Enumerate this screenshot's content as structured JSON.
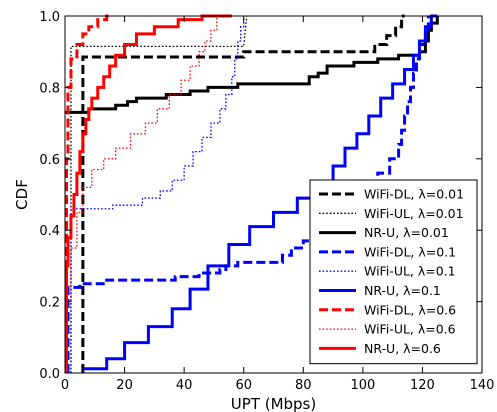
{
  "chart_data": {
    "type": "line",
    "chart_kind": "step CDF",
    "xlabel": "UPT (Mbps)",
    "ylabel": "CDF",
    "xlim": [
      0,
      140
    ],
    "ylim": [
      0.0,
      1.0
    ],
    "x_ticks": [
      "0",
      "20",
      "40",
      "60",
      "80",
      "100",
      "120",
      "140"
    ],
    "y_ticks": [
      "0.0",
      "0.2",
      "0.4",
      "0.6",
      "0.8",
      "1.0"
    ],
    "grid": false,
    "legend_placement": "lower-right",
    "colors": {
      "lambda_0.01": "#000000",
      "lambda_0.1": "#0000ff",
      "lambda_0.6": "#ff0000"
    },
    "series": [
      {
        "name": "WiFi-DL, λ=0.01",
        "color": "#000000",
        "style": "dashed",
        "points": [
          [
            6,
            0.0
          ],
          [
            6,
            0.885
          ],
          [
            60,
            0.885
          ],
          [
            60,
            0.9
          ],
          [
            104,
            0.9
          ],
          [
            104,
            0.92
          ],
          [
            108,
            0.92
          ],
          [
            108,
            0.945
          ],
          [
            111,
            0.945
          ],
          [
            111,
            0.97
          ],
          [
            113,
            0.97
          ],
          [
            113,
            1.0
          ],
          [
            114,
            1.0
          ]
        ]
      },
      {
        "name": "WiFi-UL, λ=0.01",
        "color": "#000000",
        "style": "dotted",
        "points": [
          [
            2,
            0.0
          ],
          [
            2,
            0.915
          ],
          [
            60,
            0.915
          ],
          [
            61,
            1.0
          ]
        ]
      },
      {
        "name": "NR-U, λ=0.01",
        "color": "#000000",
        "style": "solid",
        "points": [
          [
            0,
            0.73
          ],
          [
            8,
            0.73
          ],
          [
            8,
            0.74
          ],
          [
            17,
            0.74
          ],
          [
            17,
            0.75
          ],
          [
            21,
            0.75
          ],
          [
            21,
            0.76
          ],
          [
            24,
            0.76
          ],
          [
            24,
            0.77
          ],
          [
            34,
            0.77
          ],
          [
            34,
            0.78
          ],
          [
            42,
            0.78
          ],
          [
            42,
            0.79
          ],
          [
            48,
            0.79
          ],
          [
            48,
            0.8
          ],
          [
            58,
            0.8
          ],
          [
            58,
            0.81
          ],
          [
            82,
            0.81
          ],
          [
            82,
            0.83
          ],
          [
            85,
            0.83
          ],
          [
            85,
            0.84
          ],
          [
            88,
            0.84
          ],
          [
            88,
            0.86
          ],
          [
            97,
            0.86
          ],
          [
            97,
            0.87
          ],
          [
            105,
            0.87
          ],
          [
            105,
            0.88
          ],
          [
            112,
            0.88
          ],
          [
            112,
            0.89
          ],
          [
            119,
            0.89
          ],
          [
            119,
            0.9
          ],
          [
            121,
            0.9
          ],
          [
            121,
            0.93
          ],
          [
            122,
            0.93
          ],
          [
            122,
            0.96
          ],
          [
            123,
            0.96
          ],
          [
            123,
            0.98
          ],
          [
            125,
            0.98
          ],
          [
            125,
            1.0
          ]
        ]
      },
      {
        "name": "WiFi-DL, λ=0.1",
        "color": "#0000ff",
        "style": "dashed",
        "points": [
          [
            1,
            0.0
          ],
          [
            1,
            0.24
          ],
          [
            5,
            0.24
          ],
          [
            5,
            0.25
          ],
          [
            14,
            0.25
          ],
          [
            14,
            0.26
          ],
          [
            37,
            0.26
          ],
          [
            37,
            0.27
          ],
          [
            45,
            0.27
          ],
          [
            45,
            0.28
          ],
          [
            52,
            0.28
          ],
          [
            52,
            0.29
          ],
          [
            54,
            0.29
          ],
          [
            54,
            0.3
          ],
          [
            58,
            0.3
          ],
          [
            58,
            0.31
          ],
          [
            73,
            0.31
          ],
          [
            73,
            0.33
          ],
          [
            76,
            0.33
          ],
          [
            76,
            0.35
          ],
          [
            80,
            0.35
          ],
          [
            80,
            0.37
          ],
          [
            83,
            0.37
          ],
          [
            83,
            0.39
          ],
          [
            86,
            0.39
          ],
          [
            86,
            0.41
          ],
          [
            90,
            0.41
          ],
          [
            90,
            0.44
          ],
          [
            93,
            0.44
          ],
          [
            93,
            0.47
          ],
          [
            96,
            0.47
          ],
          [
            96,
            0.5
          ],
          [
            101,
            0.5
          ],
          [
            101,
            0.53
          ],
          [
            105,
            0.53
          ],
          [
            105,
            0.56
          ],
          [
            109,
            0.56
          ],
          [
            109,
            0.6
          ],
          [
            112,
            0.6
          ],
          [
            112,
            0.64
          ],
          [
            113,
            0.64
          ],
          [
            113,
            0.68
          ],
          [
            114,
            0.68
          ],
          [
            114,
            0.72
          ],
          [
            115,
            0.72
          ],
          [
            115,
            0.76
          ],
          [
            116,
            0.76
          ],
          [
            116,
            0.8
          ],
          [
            117,
            0.8
          ],
          [
            117,
            0.84
          ],
          [
            118,
            0.84
          ],
          [
            118,
            0.88
          ],
          [
            119,
            0.88
          ],
          [
            119,
            0.92
          ],
          [
            121,
            0.92
          ],
          [
            121,
            0.96
          ],
          [
            122,
            0.96
          ],
          [
            122,
            1.0
          ]
        ]
      },
      {
        "name": "WiFi-UL, λ=0.1",
        "color": "#0000ff",
        "style": "dotted",
        "points": [
          [
            2,
            0.0
          ],
          [
            2,
            0.46
          ],
          [
            16,
            0.46
          ],
          [
            16,
            0.47
          ],
          [
            26,
            0.47
          ],
          [
            26,
            0.49
          ],
          [
            32,
            0.49
          ],
          [
            32,
            0.51
          ],
          [
            36,
            0.51
          ],
          [
            36,
            0.54
          ],
          [
            40,
            0.54
          ],
          [
            40,
            0.58
          ],
          [
            43,
            0.58
          ],
          [
            43,
            0.62
          ],
          [
            46,
            0.62
          ],
          [
            46,
            0.66
          ],
          [
            49,
            0.66
          ],
          [
            49,
            0.7
          ],
          [
            52,
            0.7
          ],
          [
            52,
            0.74
          ],
          [
            54,
            0.74
          ],
          [
            54,
            0.78
          ],
          [
            56,
            0.78
          ],
          [
            56,
            0.83
          ],
          [
            57,
            0.83
          ],
          [
            57,
            0.88
          ],
          [
            58,
            0.88
          ],
          [
            58,
            0.93
          ],
          [
            59,
            0.93
          ],
          [
            59,
            0.97
          ],
          [
            60,
            0.97
          ],
          [
            60,
            1.0
          ]
        ]
      },
      {
        "name": "NR-U, λ=0.1",
        "color": "#0000ff",
        "style": "solid",
        "points": [
          [
            6,
            0.012
          ],
          [
            14,
            0.012
          ],
          [
            14,
            0.04
          ],
          [
            20,
            0.04
          ],
          [
            20,
            0.085
          ],
          [
            28,
            0.085
          ],
          [
            28,
            0.13
          ],
          [
            36,
            0.13
          ],
          [
            36,
            0.18
          ],
          [
            42,
            0.18
          ],
          [
            42,
            0.235
          ],
          [
            48,
            0.235
          ],
          [
            48,
            0.3
          ],
          [
            55,
            0.3
          ],
          [
            55,
            0.36
          ],
          [
            62,
            0.36
          ],
          [
            62,
            0.41
          ],
          [
            70,
            0.41
          ],
          [
            70,
            0.45
          ],
          [
            78,
            0.45
          ],
          [
            78,
            0.49
          ],
          [
            85,
            0.49
          ],
          [
            85,
            0.53
          ],
          [
            90,
            0.53
          ],
          [
            90,
            0.58
          ],
          [
            94,
            0.58
          ],
          [
            94,
            0.63
          ],
          [
            98,
            0.63
          ],
          [
            98,
            0.67
          ],
          [
            102,
            0.67
          ],
          [
            102,
            0.72
          ],
          [
            106,
            0.72
          ],
          [
            106,
            0.77
          ],
          [
            110,
            0.77
          ],
          [
            110,
            0.81
          ],
          [
            114,
            0.81
          ],
          [
            114,
            0.85
          ],
          [
            117,
            0.85
          ],
          [
            117,
            0.89
          ],
          [
            119,
            0.89
          ],
          [
            119,
            0.93
          ],
          [
            121,
            0.93
          ],
          [
            121,
            0.97
          ],
          [
            123,
            0.97
          ],
          [
            123,
            1.0
          ],
          [
            125,
            1.0
          ]
        ]
      },
      {
        "name": "WiFi-DL, λ=0.6",
        "color": "#ff0000",
        "style": "dashed",
        "points": [
          [
            0.5,
            0.0
          ],
          [
            0.5,
            0.6
          ],
          [
            1,
            0.6
          ],
          [
            1,
            0.8
          ],
          [
            2,
            0.8
          ],
          [
            2,
            0.88
          ],
          [
            4,
            0.88
          ],
          [
            4,
            0.92
          ],
          [
            6,
            0.92
          ],
          [
            6,
            0.95
          ],
          [
            8,
            0.95
          ],
          [
            8,
            0.97
          ],
          [
            11,
            0.97
          ],
          [
            11,
            0.99
          ],
          [
            14,
            0.99
          ],
          [
            14,
            1.0
          ],
          [
            16,
            1.0
          ]
        ]
      },
      {
        "name": "WiFi-UL, λ=0.6",
        "color": "#ff0000",
        "style": "dotted",
        "points": [
          [
            0.5,
            0.0
          ],
          [
            0.5,
            0.2
          ],
          [
            2,
            0.2
          ],
          [
            2,
            0.35
          ],
          [
            4,
            0.35
          ],
          [
            4,
            0.45
          ],
          [
            6,
            0.45
          ],
          [
            6,
            0.52
          ],
          [
            9,
            0.52
          ],
          [
            9,
            0.57
          ],
          [
            13,
            0.57
          ],
          [
            13,
            0.6
          ],
          [
            17,
            0.6
          ],
          [
            17,
            0.63
          ],
          [
            22,
            0.63
          ],
          [
            22,
            0.67
          ],
          [
            27,
            0.67
          ],
          [
            27,
            0.7
          ],
          [
            31,
            0.7
          ],
          [
            31,
            0.74
          ],
          [
            35,
            0.74
          ],
          [
            35,
            0.78
          ],
          [
            39,
            0.78
          ],
          [
            39,
            0.82
          ],
          [
            42,
            0.82
          ],
          [
            42,
            0.86
          ],
          [
            45,
            0.86
          ],
          [
            45,
            0.9
          ],
          [
            47,
            0.9
          ],
          [
            47,
            0.93
          ],
          [
            49,
            0.93
          ],
          [
            49,
            0.96
          ],
          [
            51,
            0.96
          ],
          [
            51,
            1.0
          ],
          [
            52,
            1.0
          ]
        ]
      },
      {
        "name": "NR-U, λ=0.6",
        "color": "#ff0000",
        "style": "solid",
        "points": [
          [
            0.5,
            0.0
          ],
          [
            0.5,
            0.3
          ],
          [
            1,
            0.3
          ],
          [
            1,
            0.38
          ],
          [
            2,
            0.38
          ],
          [
            2,
            0.44
          ],
          [
            3,
            0.44
          ],
          [
            3,
            0.5
          ],
          [
            4,
            0.5
          ],
          [
            4,
            0.56
          ],
          [
            5,
            0.56
          ],
          [
            5,
            0.62
          ],
          [
            6,
            0.62
          ],
          [
            6,
            0.67
          ],
          [
            7,
            0.67
          ],
          [
            7,
            0.71
          ],
          [
            8,
            0.71
          ],
          [
            8,
            0.74
          ],
          [
            9,
            0.74
          ],
          [
            9,
            0.77
          ],
          [
            11,
            0.77
          ],
          [
            11,
            0.8
          ],
          [
            13,
            0.8
          ],
          [
            13,
            0.83
          ],
          [
            15,
            0.83
          ],
          [
            15,
            0.86
          ],
          [
            17,
            0.86
          ],
          [
            17,
            0.89
          ],
          [
            20,
            0.89
          ],
          [
            20,
            0.92
          ],
          [
            24,
            0.92
          ],
          [
            24,
            0.95
          ],
          [
            30,
            0.95
          ],
          [
            30,
            0.97
          ],
          [
            38,
            0.97
          ],
          [
            38,
            0.99
          ],
          [
            46,
            0.99
          ],
          [
            46,
            1.0
          ],
          [
            56,
            1.0
          ]
        ]
      }
    ]
  }
}
